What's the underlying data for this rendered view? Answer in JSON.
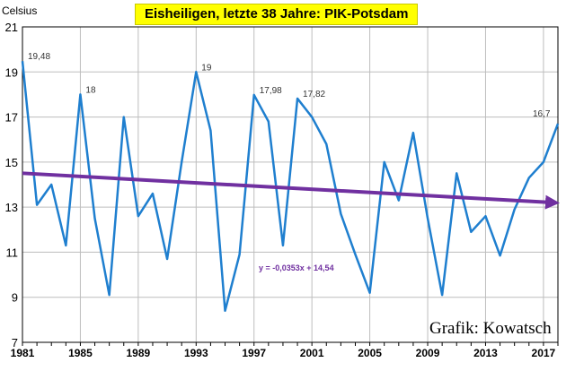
{
  "title": "Eisheiligen, letzte 38 Jahre: PIK-Potsdam",
  "credit": "Grafik: Kowatsch",
  "colors": {
    "line": "#1f7fcf",
    "trend": "#7030a0",
    "title_bg": "#ffff00",
    "grid": "#bdbdbd"
  },
  "chart_data": {
    "type": "line",
    "title": "Eisheiligen, letzte 38 Jahre: PIK-Potsdam",
    "xlabel": "",
    "ylabel": "Celsius",
    "xlim": [
      1981,
      2018
    ],
    "ylim": [
      7,
      21
    ],
    "ytick_values": [
      7,
      9,
      11,
      13,
      15,
      17,
      19,
      21
    ],
    "ytick_labels": [
      "7",
      "9",
      "11",
      "13",
      "15",
      "17",
      "19",
      "21"
    ],
    "xtick_values": [
      1981,
      1985,
      1989,
      1993,
      1997,
      2001,
      2005,
      2009,
      2013,
      2017
    ],
    "xtick_labels": [
      "1981",
      "1985",
      "1989",
      "1993",
      "1997",
      "2001",
      "2005",
      "2009",
      "2013",
      "2017"
    ],
    "grid": true,
    "legend": "none",
    "x": [
      1981,
      1982,
      1983,
      1984,
      1985,
      1986,
      1987,
      1988,
      1989,
      1990,
      1991,
      1992,
      1993,
      1994,
      1995,
      1996,
      1997,
      1998,
      1999,
      2000,
      2001,
      2002,
      2003,
      2004,
      2005,
      2006,
      2007,
      2008,
      2009,
      2010,
      2011,
      2012,
      2013,
      2014,
      2015,
      2016,
      2017,
      2018
    ],
    "series": [
      {
        "values": [
          19.48,
          13.1,
          14.0,
          11.3,
          18,
          12.5,
          9.1,
          17,
          12.6,
          13.6,
          10.7,
          15.0,
          19,
          16.4,
          8.4,
          10.9,
          17.98,
          16.8,
          11.3,
          17.82,
          17.0,
          15.8,
          12.7,
          10.9,
          9.2,
          15.0,
          13.3,
          16.3,
          12.5,
          9.1,
          14.5,
          11.9,
          12.6,
          10.85,
          12.9,
          14.3,
          15.0,
          16.7
        ]
      }
    ],
    "annotations": [
      {
        "x": 1981,
        "y": 19.48,
        "text": "19,48"
      },
      {
        "x": 1985,
        "y": 18,
        "text": "18"
      },
      {
        "x": 1993,
        "y": 19,
        "text": "19"
      },
      {
        "x": 1997,
        "y": 17.98,
        "text": "17,98"
      },
      {
        "x": 2000,
        "y": 17.82,
        "text": "17,82"
      },
      {
        "x": 2018,
        "y": 16.7,
        "text": "16,7"
      }
    ],
    "trendline": {
      "slope": -0.0353,
      "intercept": 14.54,
      "label": "y = -0,0353x + 14,54"
    }
  }
}
